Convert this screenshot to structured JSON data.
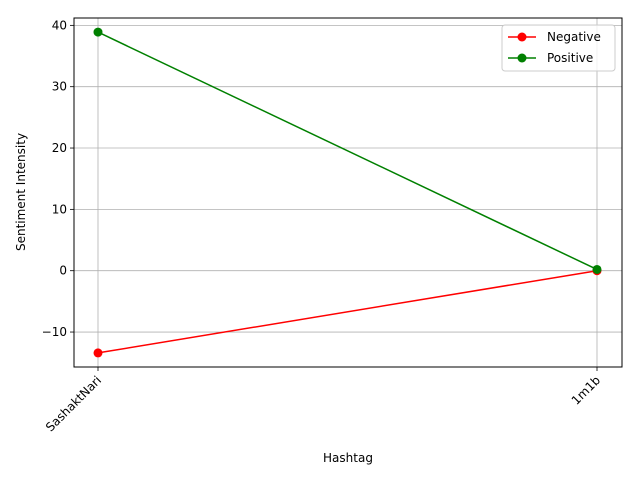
{
  "chart_data": {
    "type": "line",
    "categories": [
      "SashaktNari",
      "1m1b"
    ],
    "series": [
      {
        "name": "Negative",
        "values": [
          -13.4,
          0.0
        ],
        "color": "#ff0000"
      },
      {
        "name": "Positive",
        "values": [
          38.9,
          0.2
        ],
        "color": "#008000"
      }
    ],
    "xlabel": "Hashtag",
    "ylabel": "Sentiment Intensity",
    "ylim": [
      -15.7,
      41.2
    ],
    "yticks": [
      -10,
      0,
      10,
      20,
      30,
      40
    ],
    "grid": true,
    "legend_position": "top-right",
    "marker": "circle"
  }
}
